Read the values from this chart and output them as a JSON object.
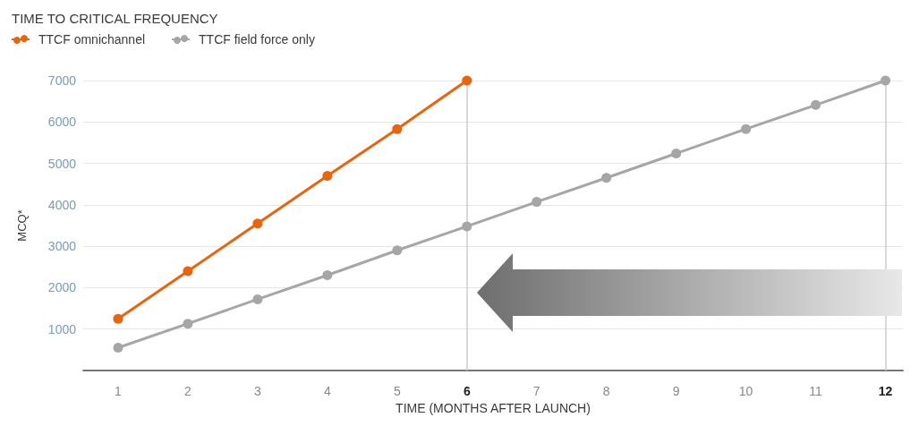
{
  "chart_data": {
    "type": "line",
    "title": "TIME TO CRITICAL FREQUENCY",
    "xlabel": "TIME (MONTHS AFTER LAUNCH)",
    "ylabel": "MCQ*",
    "x": [
      1,
      2,
      3,
      4,
      5,
      6,
      7,
      8,
      9,
      10,
      11,
      12
    ],
    "series": [
      {
        "name": "TTCF omnichannel",
        "color": "#e8650f",
        "x": [
          1,
          2,
          3,
          4,
          5,
          6
        ],
        "values": [
          1250,
          2400,
          3550,
          4700,
          5830,
          7000
        ]
      },
      {
        "name": "TTCF field force only",
        "color": "#a6a6a6",
        "values": [
          550,
          1130,
          1720,
          2300,
          2900,
          3480,
          4070,
          4650,
          5240,
          5830,
          6410,
          7000
        ]
      }
    ],
    "xlim": [
      0.5,
      12.25
    ],
    "xticks": [
      1,
      2,
      3,
      4,
      5,
      6,
      7,
      8,
      9,
      10,
      11,
      12
    ],
    "ylim": [
      0,
      7000
    ],
    "yticks": [
      1000,
      2000,
      3000,
      4000,
      5000,
      6000,
      7000
    ],
    "ref_lines": [
      {
        "axis": "x",
        "value": 6,
        "color": "#cccccc"
      },
      {
        "axis": "x",
        "value": 12,
        "color": "#cccccc"
      }
    ],
    "grid": "y",
    "legend": "top left",
    "marker": "circle",
    "line_style": "solid"
  }
}
